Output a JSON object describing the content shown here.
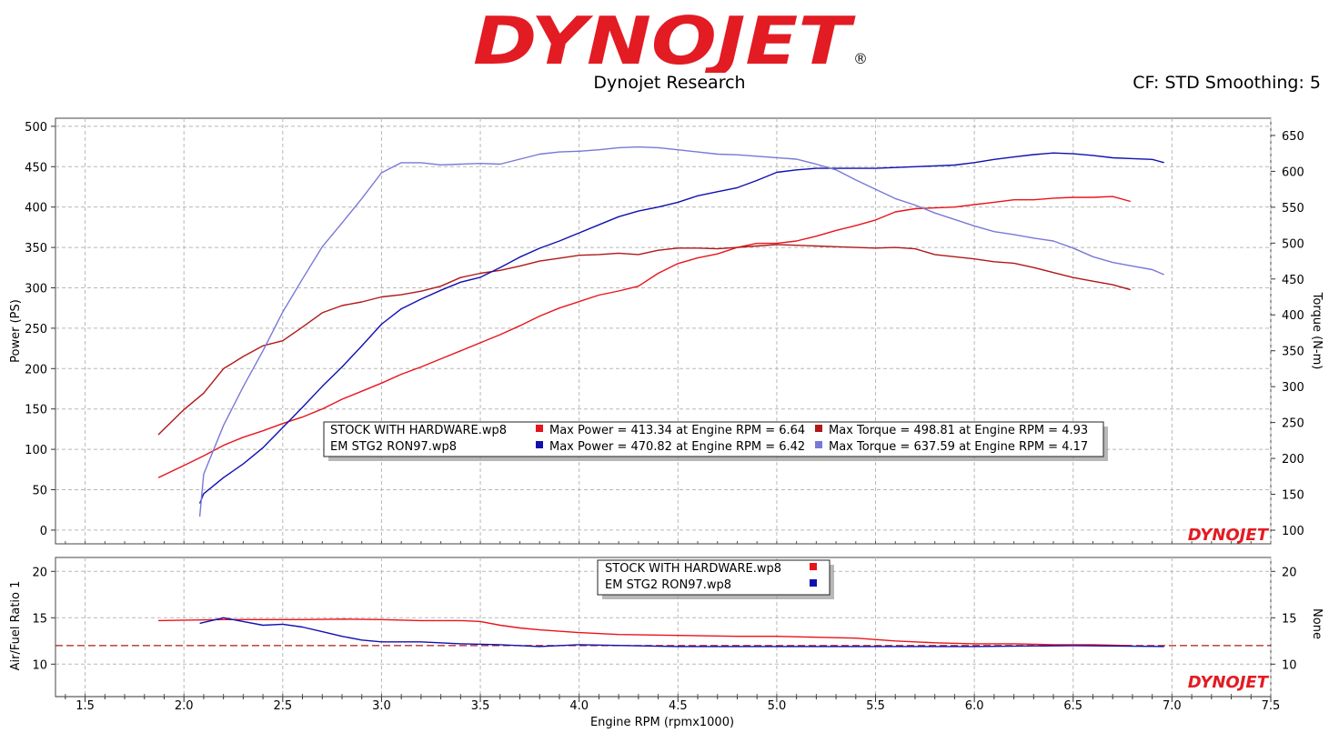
{
  "header": {
    "logo_text": "DYNOJET",
    "subtitle": "Dynojet Research",
    "cf_label": "CF: STD Smoothing: 5"
  },
  "colors": {
    "stock_power": "#e8141b",
    "stock_torque": "#b01818",
    "stg2_power": "#1010b0",
    "stg2_torque": "#7878d8",
    "grid": "#b8b8b8",
    "logo_red": "#e31b23",
    "logo_black": "#1a1a1a"
  },
  "chart_data": [
    {
      "type": "line",
      "name": "power-torque",
      "xlabel": "Engine RPM (rpmx1000)",
      "ylabel": "Power (PS)",
      "y2label": "Torque (N-m)",
      "xlim": [
        1.35,
        7.5
      ],
      "ylim": [
        -17,
        510
      ],
      "y2lim": [
        81,
        674
      ],
      "xticks": [
        "1.5",
        "2.0",
        "2.5",
        "3.0",
        "3.5",
        "4.0",
        "4.5",
        "5.0",
        "5.5",
        "6.0",
        "6.5",
        "7.0",
        "7.5"
      ],
      "yticks": [
        "0",
        "50",
        "100",
        "150",
        "200",
        "250",
        "300",
        "350",
        "400",
        "450",
        "500"
      ],
      "y2ticks": [
        "100",
        "150",
        "200",
        "250",
        "300",
        "350",
        "400",
        "450",
        "500",
        "550",
        "600",
        "650"
      ],
      "grid": true,
      "watermark": "DYNOJET",
      "series": [
        {
          "name": "STOCK WITH HARDWARE.wp8",
          "measure": "Power",
          "axis": "left",
          "color": "#e8141b",
          "x": [
            1.87,
            2.0,
            2.1,
            2.2,
            2.3,
            2.4,
            2.5,
            2.6,
            2.7,
            2.8,
            2.9,
            3.0,
            3.1,
            3.2,
            3.3,
            3.4,
            3.5,
            3.6,
            3.7,
            3.8,
            3.9,
            4.0,
            4.1,
            4.2,
            4.3,
            4.4,
            4.5,
            4.6,
            4.7,
            4.8,
            4.9,
            5.0,
            5.1,
            5.2,
            5.3,
            5.4,
            5.5,
            5.6,
            5.7,
            5.8,
            5.9,
            6.0,
            6.1,
            6.2,
            6.3,
            6.4,
            6.5,
            6.6,
            6.7,
            6.79
          ],
          "y": [
            65,
            80,
            92,
            105,
            115,
            123,
            132,
            140,
            150,
            162,
            172,
            182,
            193,
            202,
            212,
            222,
            232,
            242,
            253,
            265,
            275,
            283,
            291,
            296,
            302,
            318,
            330,
            337,
            342,
            350,
            355,
            355,
            358,
            364,
            371,
            377,
            384,
            394,
            398,
            399,
            400,
            403,
            406,
            409,
            409,
            411,
            412,
            412,
            413,
            407
          ]
        },
        {
          "name": "STOCK WITH HARDWARE.wp8",
          "measure": "Torque",
          "axis": "right",
          "color": "#b01818",
          "x": [
            1.87,
            2.0,
            2.1,
            2.2,
            2.3,
            2.4,
            2.5,
            2.6,
            2.7,
            2.8,
            2.9,
            3.0,
            3.1,
            3.2,
            3.3,
            3.4,
            3.5,
            3.6,
            3.7,
            3.8,
            3.9,
            4.0,
            4.1,
            4.2,
            4.3,
            4.4,
            4.5,
            4.6,
            4.7,
            4.8,
            4.9,
            5.0,
            5.1,
            5.2,
            5.3,
            5.4,
            5.5,
            5.6,
            5.7,
            5.8,
            5.9,
            6.0,
            6.1,
            6.2,
            6.3,
            6.4,
            6.5,
            6.6,
            6.7,
            6.79
          ],
          "y": [
            233,
            268,
            291,
            325,
            342,
            357,
            364,
            383,
            403,
            413,
            418,
            425,
            428,
            433,
            440,
            452,
            458,
            462,
            468,
            475,
            479,
            483,
            484,
            486,
            484,
            490,
            493,
            493,
            492,
            494,
            496,
            498,
            497,
            496,
            495,
            494,
            493,
            494,
            492,
            484,
            481,
            478,
            474,
            472,
            466,
            459,
            452,
            447,
            442,
            435
          ]
        },
        {
          "name": "EM STG2 RON97.wp8",
          "measure": "Power",
          "axis": "left",
          "color": "#1010b0",
          "x": [
            2.08,
            2.1,
            2.2,
            2.3,
            2.4,
            2.5,
            2.6,
            2.7,
            2.8,
            2.9,
            3.0,
            3.1,
            3.2,
            3.3,
            3.4,
            3.5,
            3.6,
            3.7,
            3.8,
            3.9,
            4.0,
            4.1,
            4.2,
            4.3,
            4.4,
            4.5,
            4.6,
            4.7,
            4.8,
            4.9,
            5.0,
            5.1,
            5.2,
            5.3,
            5.4,
            5.5,
            5.6,
            5.7,
            5.8,
            5.9,
            6.0,
            6.1,
            6.2,
            6.3,
            6.4,
            6.5,
            6.6,
            6.7,
            6.8,
            6.9,
            6.96
          ],
          "y": [
            33,
            45,
            65,
            82,
            102,
            127,
            152,
            178,
            202,
            228,
            255,
            274,
            286,
            297,
            307,
            313,
            325,
            338,
            349,
            358,
            368,
            378,
            388,
            395,
            400,
            406,
            414,
            419,
            424,
            433,
            443,
            446,
            448,
            448,
            448,
            448,
            449,
            450,
            451,
            452,
            455,
            459,
            462,
            465,
            467,
            466,
            464,
            461,
            460,
            459,
            455
          ]
        },
        {
          "name": "EM STG2 RON97.wp8",
          "measure": "Torque",
          "axis": "right",
          "color": "#7878d8",
          "x": [
            2.08,
            2.1,
            2.2,
            2.3,
            2.4,
            2.5,
            2.6,
            2.7,
            2.8,
            2.9,
            3.0,
            3.1,
            3.2,
            3.3,
            3.4,
            3.5,
            3.6,
            3.7,
            3.8,
            3.9,
            4.0,
            4.1,
            4.2,
            4.3,
            4.4,
            4.5,
            4.6,
            4.7,
            4.8,
            4.9,
            5.0,
            5.1,
            5.2,
            5.3,
            5.4,
            5.5,
            5.6,
            5.7,
            5.8,
            5.9,
            6.0,
            6.1,
            6.2,
            6.3,
            6.4,
            6.5,
            6.6,
            6.7,
            6.8,
            6.9,
            6.96
          ],
          "y": [
            119,
            178,
            246,
            300,
            350,
            404,
            450,
            495,
            528,
            562,
            598,
            612,
            612,
            609,
            610,
            611,
            610,
            617,
            624,
            627,
            628,
            630,
            633,
            634,
            633,
            630,
            627,
            624,
            623,
            621,
            619,
            617,
            610,
            602,
            588,
            575,
            562,
            553,
            542,
            533,
            524,
            516,
            512,
            507,
            503,
            493,
            481,
            473,
            468,
            463,
            456
          ]
        }
      ],
      "legend": {
        "placement": "bottom-center",
        "rows": [
          {
            "file": "STOCK WITH HARDWARE.wp8",
            "power_label": "Max Power = 413.34 at Engine RPM = 6.64",
            "power_color": "#e8141b",
            "torque_label": "Max Torque = 498.81 at Engine RPM = 4.93",
            "torque_color": "#b01818"
          },
          {
            "file": "EM STG2 RON97.wp8",
            "power_label": "Max Power = 470.82 at Engine RPM = 6.42",
            "power_color": "#1010b0",
            "torque_label": "Max Torque = 637.59 at Engine RPM = 4.17",
            "torque_color": "#7878d8"
          }
        ]
      }
    },
    {
      "type": "line",
      "name": "air-fuel",
      "xlabel": "Engine RPM (rpmx1000)",
      "ylabel": "Air/Fuel Ratio 1",
      "y2label": "None",
      "xlim": [
        1.35,
        7.5
      ],
      "ylim": [
        6.5,
        21.5
      ],
      "y2lim": [
        6.5,
        21.5
      ],
      "xticks": [
        "1.5",
        "2.0",
        "2.5",
        "3.0",
        "3.5",
        "4.0",
        "4.5",
        "5.0",
        "5.5",
        "6.0",
        "6.5",
        "7.0",
        "7.5"
      ],
      "yticks": [
        "10",
        "15",
        "20"
      ],
      "y2ticks": [
        "10",
        "15",
        "20"
      ],
      "grid": true,
      "reference_line": 12,
      "watermark": "DYNOJET",
      "series": [
        {
          "name": "STOCK WITH HARDWARE.wp8",
          "color": "#e8141b",
          "x": [
            1.87,
            2.0,
            2.2,
            2.4,
            2.6,
            2.8,
            3.0,
            3.2,
            3.4,
            3.5,
            3.6,
            3.7,
            3.8,
            4.0,
            4.2,
            4.5,
            4.8,
            5.0,
            5.2,
            5.4,
            5.6,
            5.8,
            6.0,
            6.2,
            6.4,
            6.6,
            6.79
          ],
          "y": [
            14.7,
            14.75,
            14.8,
            14.8,
            14.8,
            14.85,
            14.8,
            14.7,
            14.7,
            14.6,
            14.2,
            13.9,
            13.7,
            13.4,
            13.2,
            13.1,
            13.0,
            13.0,
            12.9,
            12.8,
            12.5,
            12.3,
            12.2,
            12.2,
            12.1,
            12.1,
            12.0
          ]
        },
        {
          "name": "EM STG2 RON97.wp8",
          "color": "#1010b0",
          "x": [
            2.08,
            2.2,
            2.3,
            2.4,
            2.5,
            2.6,
            2.7,
            2.8,
            2.9,
            3.0,
            3.2,
            3.4,
            3.6,
            3.8,
            4.0,
            4.5,
            5.0,
            5.5,
            6.0,
            6.5,
            6.96
          ],
          "y": [
            14.4,
            15.0,
            14.6,
            14.2,
            14.3,
            14.0,
            13.5,
            13.0,
            12.6,
            12.4,
            12.4,
            12.2,
            12.1,
            11.9,
            12.1,
            11.9,
            11.9,
            11.9,
            11.9,
            12.0,
            11.9
          ]
        }
      ],
      "legend": {
        "placement": "top-center",
        "rows": [
          {
            "file": "STOCK WITH HARDWARE.wp8",
            "color": "#e8141b"
          },
          {
            "file": "EM STG2 RON97.wp8",
            "color": "#1010b0"
          }
        ]
      }
    }
  ]
}
